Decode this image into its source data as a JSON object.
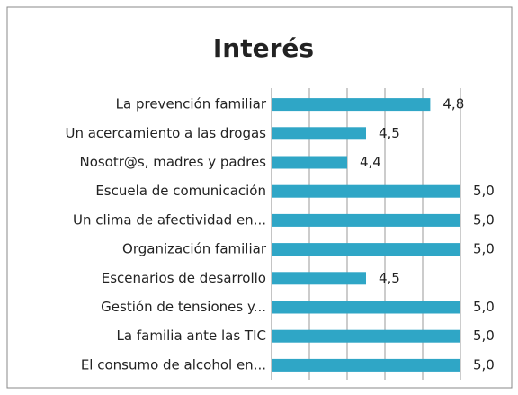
{
  "chart_data": {
    "type": "bar",
    "orientation": "horizontal",
    "title": "Interés",
    "categories": [
      "La prevención familiar",
      "Un acercamiento a las drogas",
      "Nosotr@s, madres y padres",
      "Escuela de comunicación",
      "Un clima de afectividad en...",
      "Organización familiar",
      "Escenarios de desarrollo",
      "Gestión de tensiones y...",
      "La familia ante las TIC",
      "El consumo de alcohol en..."
    ],
    "values": [
      4.84,
      4.5,
      4.4,
      5.0,
      5.0,
      5.0,
      4.5,
      5.0,
      5.0,
      5.0
    ],
    "value_labels": [
      "4,8",
      "4,5",
      "4,4",
      "5,0",
      "5,0",
      "5,0",
      "4,5",
      "5,0",
      "5,0",
      "5,0"
    ],
    "color": "#2fa6c6",
    "xlim": [
      4,
      5
    ],
    "xticks": [
      4,
      4.2,
      4.4,
      4.6,
      4.8,
      5
    ],
    "grid": true
  }
}
